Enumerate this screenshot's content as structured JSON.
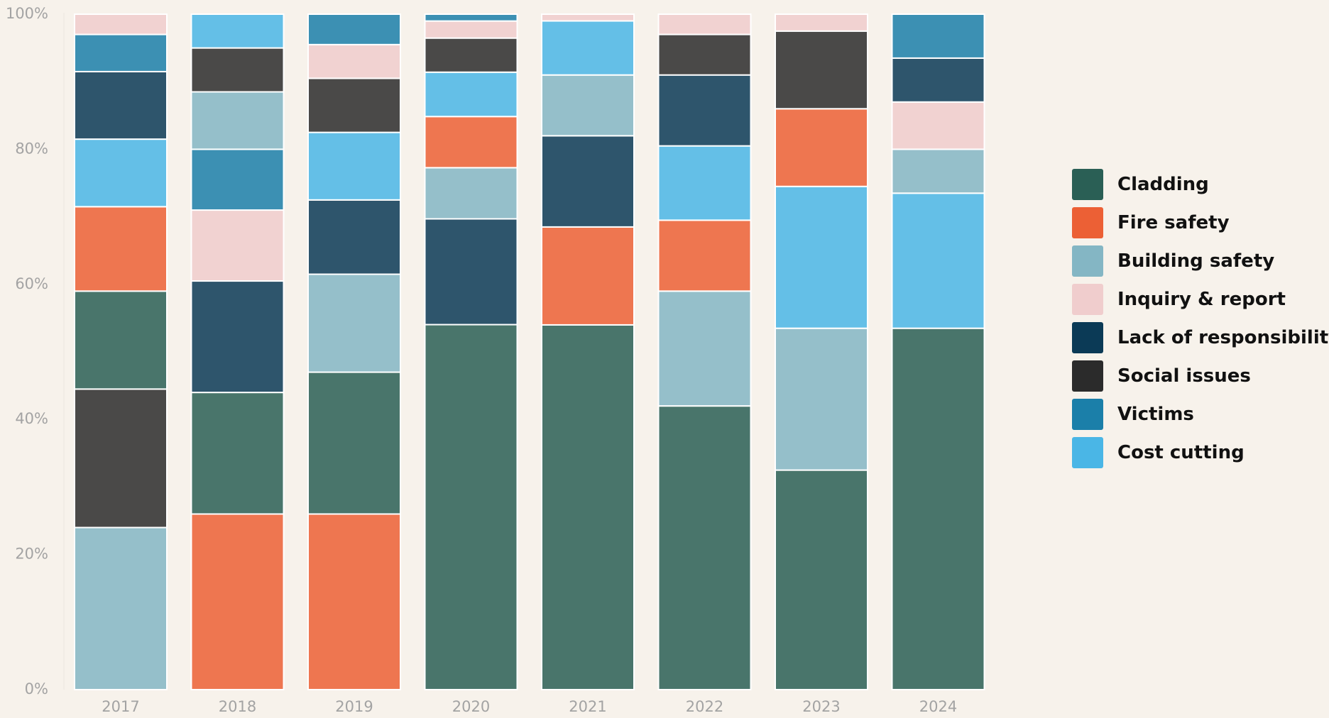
{
  "chart_data": {
    "type": "bar",
    "stacked": true,
    "normalized": true,
    "title": "",
    "xlabel": "",
    "ylabel": "",
    "ylim": [
      0,
      100
    ],
    "y_ticks": [
      "0%",
      "20%",
      "40%",
      "60%",
      "80%",
      "100%"
    ],
    "grid": false,
    "legend_position": "right",
    "categories": [
      "2017",
      "2018",
      "2019",
      "2020",
      "2021",
      "2022",
      "2023",
      "2024"
    ],
    "series": [
      {
        "name": "Cladding",
        "color": "#2a5f55",
        "values": [
          14.5,
          18,
          21,
          53.5,
          54,
          42,
          32.5,
          53.5
        ]
      },
      {
        "name": "Fire safety",
        "color": "#ec6035",
        "values": [
          12.5,
          26,
          26,
          7.5,
          14.5,
          10.5,
          11.5,
          0
        ]
      },
      {
        "name": "Building safety",
        "color": "#84b6c4",
        "values": [
          24,
          8.5,
          14.5,
          7.5,
          9,
          17,
          21,
          6.5
        ]
      },
      {
        "name": "Inquiry & report",
        "color": "#f0cdcd",
        "values": [
          3,
          10.5,
          5,
          2.5,
          1,
          3,
          2.5,
          7
        ]
      },
      {
        "name": "Lack of responsibility",
        "color": "#0b3a56",
        "values": [
          10,
          16.5,
          11,
          15.5,
          13.5,
          10.5,
          0,
          6.5
        ]
      },
      {
        "name": "Social issues",
        "color": "#2b2b2b",
        "values": [
          20.5,
          6.5,
          8,
          5,
          0,
          6,
          11.5,
          0
        ]
      },
      {
        "name": "Victims",
        "color": "#1b7fa9",
        "values": [
          5.5,
          9,
          4.5,
          1,
          0,
          0,
          0,
          6.5
        ]
      },
      {
        "name": "Cost cutting",
        "color": "#4ab6e6",
        "values": [
          10,
          5,
          10,
          6.5,
          8,
          11,
          21,
          20
        ]
      }
    ],
    "stack_order": [
      [
        "Building safety",
        "Social issues",
        "Cladding",
        "Fire safety",
        "Cost cutting",
        "Lack of responsibility",
        "Victims",
        "Inquiry & report"
      ],
      [
        "Fire safety",
        "Cladding",
        "Lack of responsibility",
        "Inquiry & report",
        "Victims",
        "Building safety",
        "Social issues",
        "Cost cutting"
      ],
      [
        "Fire safety",
        "Cladding",
        "Building safety",
        "Lack of responsibility",
        "Cost cutting",
        "Social issues",
        "Inquiry & report",
        "Victims"
      ],
      [
        "Cladding",
        "Lack of responsibility",
        "Building safety",
        "Fire safety",
        "Cost cutting",
        "Social issues",
        "Inquiry & report",
        "Victims"
      ],
      [
        "Cladding",
        "Fire safety",
        "Lack of responsibility",
        "Building safety",
        "Cost cutting",
        "Inquiry & report"
      ],
      [
        "Cladding",
        "Building safety",
        "Fire safety",
        "Cost cutting",
        "Lack of responsibility",
        "Social issues",
        "Inquiry & report"
      ],
      [
        "Cladding",
        "Building safety",
        "Cost cutting",
        "Fire safety",
        "Social issues",
        "Inquiry & report"
      ],
      [
        "Cladding",
        "Cost cutting",
        "Building safety",
        "Inquiry & report",
        "Lack of responsibility",
        "Victims"
      ]
    ]
  }
}
